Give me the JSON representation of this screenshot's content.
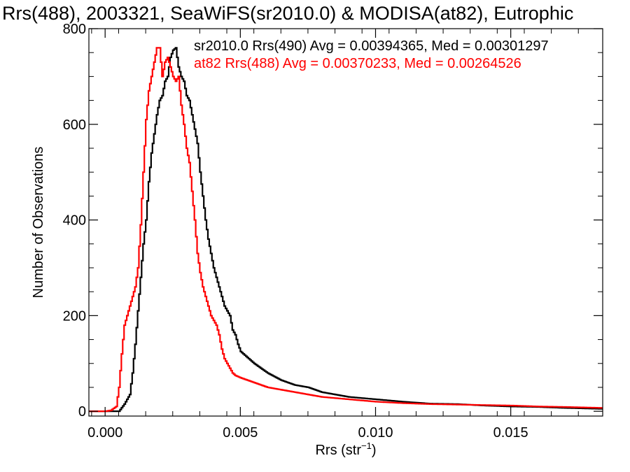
{
  "chart_data": {
    "type": "line",
    "title": "Rrs(488), 2003321, SeaWiFS(sr2010.0) & MODISA(at82), Eutrophic",
    "xlabel": "Rrs (str",
    "xlabel_sup": "−1",
    "xlabel_close": ")",
    "ylabel": "Number of Observations",
    "xlim": [
      -0.0006,
      0.0184
    ],
    "ylim": [
      -10,
      800
    ],
    "xticks": [
      0.0,
      0.005,
      0.01,
      0.015
    ],
    "xtick_labels": [
      "0.000",
      "0.005",
      "0.010",
      "0.015"
    ],
    "yticks": [
      0,
      200,
      400,
      600,
      800
    ],
    "ytick_labels": [
      "0",
      "200",
      "400",
      "600",
      "800"
    ],
    "grid": false,
    "legend_placement": "top-right",
    "series": [
      {
        "name": "sr2010.0 Rrs(490) Avg = 0.00394365, Med = 0.00301297",
        "color": "#000000",
        "x": [
          0.0,
          0.0005,
          0.0007,
          0.0009,
          0.001,
          0.0011,
          0.0012,
          0.0013,
          0.0014,
          0.0015,
          0.0016,
          0.0017,
          0.0018,
          0.0019,
          0.002,
          0.0021,
          0.0022,
          0.0023,
          0.0024,
          0.0025,
          0.0026,
          0.0027,
          0.0028,
          0.0029,
          0.003,
          0.0031,
          0.0032,
          0.0033,
          0.0034,
          0.0035,
          0.0036,
          0.0037,
          0.0038,
          0.0039,
          0.004,
          0.0041,
          0.0042,
          0.0043,
          0.0044,
          0.0045,
          0.0046,
          0.0047,
          0.0048,
          0.0049,
          0.005,
          0.0055,
          0.006,
          0.0065,
          0.007,
          0.0075,
          0.008,
          0.009,
          0.01,
          0.011,
          0.012,
          0.013,
          0.014,
          0.015,
          0.016,
          0.017,
          0.0184
        ],
        "y": [
          0,
          0,
          15,
          35,
          80,
          140,
          210,
          280,
          350,
          400,
          480,
          540,
          580,
          620,
          650,
          660,
          690,
          700,
          740,
          755,
          760,
          720,
          700,
          690,
          660,
          650,
          620,
          590,
          560,
          500,
          450,
          400,
          360,
          330,
          300,
          280,
          260,
          240,
          220,
          210,
          200,
          170,
          160,
          140,
          125,
          100,
          80,
          65,
          55,
          50,
          40,
          30,
          25,
          20,
          16,
          15,
          12,
          10,
          9,
          7,
          5
        ]
      },
      {
        "name": "at82 Rrs(488) Avg = 0.00370233, Med = 0.00264526",
        "color": "#ff0000",
        "x": [
          0.0,
          0.0002,
          0.0004,
          0.0005,
          0.0006,
          0.0007,
          0.0008,
          0.0009,
          0.001,
          0.0011,
          0.0012,
          0.0013,
          0.0014,
          0.0015,
          0.0016,
          0.0017,
          0.0018,
          0.0019,
          0.002,
          0.0021,
          0.0022,
          0.0023,
          0.0024,
          0.0025,
          0.0026,
          0.0027,
          0.0028,
          0.0029,
          0.003,
          0.0031,
          0.0032,
          0.0033,
          0.0034,
          0.0035,
          0.0036,
          0.0037,
          0.0038,
          0.0039,
          0.004,
          0.0041,
          0.0042,
          0.0043,
          0.0044,
          0.0045,
          0.0046,
          0.0047,
          0.0048,
          0.005,
          0.0055,
          0.006,
          0.0065,
          0.007,
          0.0075,
          0.008,
          0.009,
          0.01,
          0.011,
          0.012,
          0.013,
          0.014,
          0.015,
          0.016,
          0.017,
          0.0184
        ],
        "y": [
          0,
          2,
          10,
          50,
          120,
          180,
          200,
          220,
          240,
          260,
          300,
          390,
          500,
          610,
          670,
          700,
          730,
          760,
          760,
          700,
          730,
          740,
          720,
          700,
          690,
          700,
          640,
          600,
          550,
          520,
          460,
          400,
          330,
          290,
          260,
          240,
          220,
          200,
          190,
          180,
          160,
          130,
          110,
          100,
          90,
          80,
          75,
          70,
          60,
          50,
          45,
          40,
          35,
          30,
          25,
          20,
          17,
          15,
          14,
          13,
          12,
          10,
          9,
          7
        ]
      }
    ]
  }
}
